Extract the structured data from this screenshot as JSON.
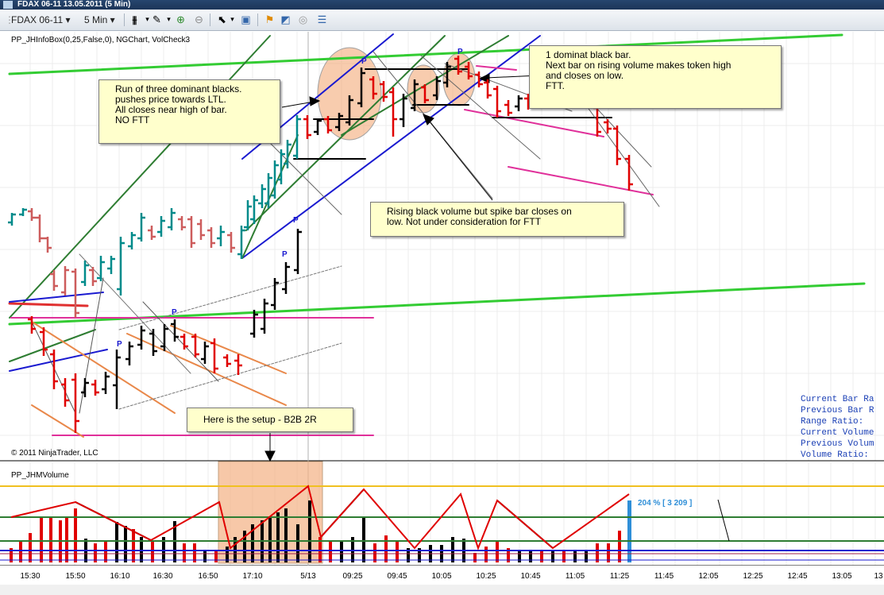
{
  "window": {
    "title": "FDAX 06-11  13.05.2011 (5 Min)"
  },
  "toolbar": {
    "instrument": "FDAX 06-11",
    "interval": "5 Min"
  },
  "price_panel": {
    "indicator_label": "PP_JHInfoBox(0,25,False,0), NGChart, VolCheck3",
    "copyright": "© 2011 NinjaTrader, LLC"
  },
  "volume_panel": {
    "indicator_label": "PP_JHMVolume",
    "volume_readout": "204 % [ 3 209 ]"
  },
  "callouts": {
    "dominant_blacks": [
      "Run of three dominant blacks.",
      "pushes price towards LTL.",
      "All closes near high of bar.",
      "NO FTT"
    ],
    "dominant_black_bar": [
      "1 dominat black bar.",
      "Next bar on rising volume makes token high",
      "and closes on low.",
      "FTT."
    ],
    "rising_black_volume": [
      "Rising black volume but spike bar closes on",
      "low.  Not under consideration for FTT"
    ],
    "setup": "Here is the setup - B2B 2R"
  },
  "infobox": [
    "Current Bar Ra",
    "Previous Bar R",
    "Range Ratio:",
    "Current Volume",
    "Previous Volum",
    "Volume Ratio:"
  ],
  "xaxis": {
    "labels": [
      "15:30",
      "15:50",
      "16:10",
      "16:30",
      "16:50",
      "17:10",
      "5/13",
      "09:25",
      "09:45",
      "10:05",
      "10:25",
      "10:45",
      "11:05",
      "11:25",
      "11:45",
      "12:05",
      "12:25",
      "12:45",
      "13:05",
      "13"
    ]
  },
  "colors": {
    "up_bar": "#008b8b",
    "down_bar": "#cd5c5c",
    "dominant_up": "#000000",
    "dominant_down": "#e00000",
    "trend_green": "#33cc33",
    "trend_blue": "#1a1ad0",
    "trend_magenta": "#e0309a",
    "highlight": "#f4b183"
  }
}
